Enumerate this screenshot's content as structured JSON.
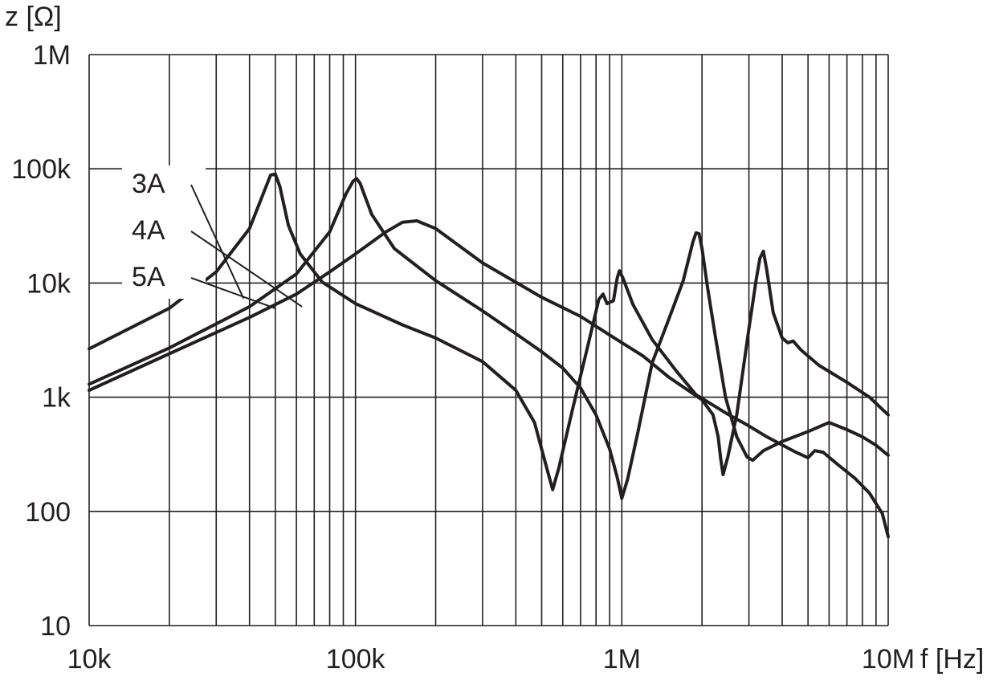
{
  "chart_data": {
    "type": "line",
    "xscale": "log",
    "yscale": "log",
    "xlabel": "f [Hz]",
    "ylabel": "z [Ω]",
    "xlim": [
      10000,
      10000000
    ],
    "ylim": [
      10,
      1000000
    ],
    "grid": true,
    "x_ticks": [
      {
        "value": 10000,
        "label": "10k"
      },
      {
        "value": 100000,
        "label": "100k"
      },
      {
        "value": 1000000,
        "label": "1M"
      },
      {
        "value": 10000000,
        "label": "10M"
      }
    ],
    "y_ticks": [
      {
        "value": 10,
        "label": "10"
      },
      {
        "value": 100,
        "label": "100"
      },
      {
        "value": 1000,
        "label": "1k"
      },
      {
        "value": 10000,
        "label": "10k"
      },
      {
        "value": 100000,
        "label": "100k"
      },
      {
        "value": 1000000,
        "label": "1M"
      }
    ],
    "series": [
      {
        "name": "3A",
        "label_anchor": {
          "x": 38000,
          "y": 7300
        },
        "points": [
          [
            10000,
            2650
          ],
          [
            20000,
            6000
          ],
          [
            30000,
            12500
          ],
          [
            40000,
            30000
          ],
          [
            45000,
            60000
          ],
          [
            48000,
            88000
          ],
          [
            50000,
            90000
          ],
          [
            52000,
            70000
          ],
          [
            56000,
            32000
          ],
          [
            62000,
            18000
          ],
          [
            75000,
            10200
          ],
          [
            100000,
            6600
          ],
          [
            150000,
            4300
          ],
          [
            200000,
            3300
          ],
          [
            300000,
            2050
          ],
          [
            400000,
            1150
          ],
          [
            470000,
            600
          ],
          [
            520000,
            250
          ],
          [
            550000,
            155
          ],
          [
            580000,
            240
          ],
          [
            650000,
            750
          ],
          [
            750000,
            3000
          ],
          [
            820000,
            7200
          ],
          [
            850000,
            8000
          ],
          [
            880000,
            6600
          ],
          [
            930000,
            7000
          ],
          [
            960000,
            11000
          ],
          [
            980000,
            12800
          ],
          [
            1010000,
            11000
          ],
          [
            1100000,
            6500
          ],
          [
            1300000,
            3200
          ],
          [
            1600000,
            1700
          ],
          [
            1900000,
            1050
          ],
          [
            2500000,
            710
          ],
          [
            3000000,
            560
          ],
          [
            3500000,
            450
          ],
          [
            4500000,
            330
          ],
          [
            5000000,
            295
          ],
          [
            5300000,
            340
          ],
          [
            5700000,
            330
          ],
          [
            6500000,
            255
          ],
          [
            7500000,
            195
          ],
          [
            8500000,
            145
          ],
          [
            9500000,
            96
          ],
          [
            10000000,
            60
          ]
        ]
      },
      {
        "name": "4A",
        "label_anchor": {
          "x": 63000,
          "y": 6200
        },
        "points": [
          [
            10000,
            1300
          ],
          [
            20000,
            2700
          ],
          [
            40000,
            6200
          ],
          [
            60000,
            12000
          ],
          [
            80000,
            28000
          ],
          [
            92000,
            60000
          ],
          [
            98000,
            78000
          ],
          [
            101000,
            82000
          ],
          [
            104000,
            75000
          ],
          [
            115000,
            40000
          ],
          [
            140000,
            20000
          ],
          [
            200000,
            10500
          ],
          [
            300000,
            5700
          ],
          [
            400000,
            3600
          ],
          [
            500000,
            2500
          ],
          [
            600000,
            1800
          ],
          [
            700000,
            1200
          ],
          [
            800000,
            700
          ],
          [
            900000,
            350
          ],
          [
            960000,
            200
          ],
          [
            1000000,
            130
          ],
          [
            1050000,
            190
          ],
          [
            1150000,
            500
          ],
          [
            1300000,
            2000
          ],
          [
            1500000,
            4800
          ],
          [
            1700000,
            10500
          ],
          [
            1850000,
            23000
          ],
          [
            1900000,
            27500
          ],
          [
            1950000,
            27000
          ],
          [
            2000000,
            20000
          ],
          [
            2100000,
            9000
          ],
          [
            2250000,
            3300
          ],
          [
            2450000,
            1000
          ],
          [
            2700000,
            450
          ],
          [
            2950000,
            300
          ],
          [
            3100000,
            280
          ],
          [
            3400000,
            340
          ],
          [
            4000000,
            410
          ],
          [
            5000000,
            500
          ],
          [
            6000000,
            600
          ],
          [
            7000000,
            520
          ],
          [
            8000000,
            450
          ],
          [
            9000000,
            380
          ],
          [
            10000000,
            310
          ]
        ]
      },
      {
        "name": "5A",
        "label_anchor": {
          "x": 50000,
          "y": 6000
        },
        "points": [
          [
            10000,
            1150
          ],
          [
            20000,
            2400
          ],
          [
            40000,
            5000
          ],
          [
            60000,
            8000
          ],
          [
            80000,
            12500
          ],
          [
            100000,
            18000
          ],
          [
            130000,
            28000
          ],
          [
            150000,
            34000
          ],
          [
            170000,
            35000
          ],
          [
            200000,
            30000
          ],
          [
            300000,
            15000
          ],
          [
            500000,
            7500
          ],
          [
            700000,
            5100
          ],
          [
            900000,
            3500
          ],
          [
            1200000,
            2300
          ],
          [
            1500000,
            1500
          ],
          [
            2000000,
            950
          ],
          [
            2200000,
            700
          ],
          [
            2300000,
            450
          ],
          [
            2350000,
            290
          ],
          [
            2400000,
            210
          ],
          [
            2500000,
            300
          ],
          [
            2700000,
            700
          ],
          [
            3000000,
            4000
          ],
          [
            3200000,
            11000
          ],
          [
            3300000,
            16500
          ],
          [
            3400000,
            19000
          ],
          [
            3500000,
            13000
          ],
          [
            3700000,
            5500
          ],
          [
            4000000,
            3300
          ],
          [
            4200000,
            3000
          ],
          [
            4400000,
            3100
          ],
          [
            4700000,
            2600
          ],
          [
            5500000,
            1900
          ],
          [
            7000000,
            1350
          ],
          [
            8500000,
            1000
          ],
          [
            10000000,
            700
          ]
        ]
      }
    ]
  }
}
